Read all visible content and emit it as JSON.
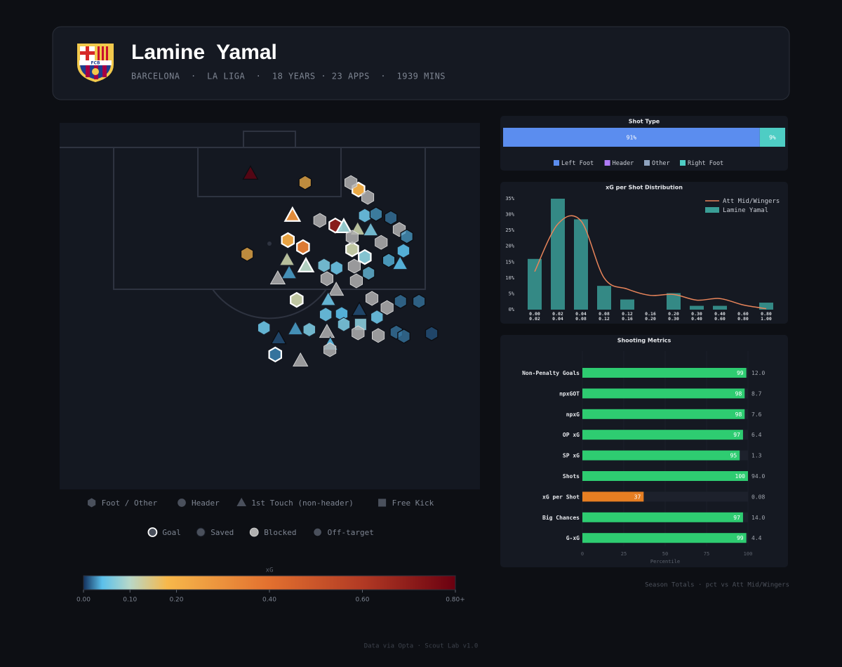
{
  "header": {
    "name": "Lamine  Yamal",
    "subtitle": "BARCELONA  ·  LA LIGA  ·  18 YEARS · 23 APPS  ·  1939 MINS",
    "crest": "FCB"
  },
  "chart_data": [
    {
      "type": "shotmap",
      "xlim": [
        0,
        100
      ],
      "ylim": [
        0,
        100
      ],
      "shots": [
        {
          "x": 45.4,
          "y": 13.9,
          "xg": 0.8,
          "shape": "triangle",
          "outcome": "off-target"
        },
        {
          "x": 58.4,
          "y": 16.3,
          "xg": 0.2,
          "shape": "hex",
          "outcome": "off-target"
        },
        {
          "x": 55.4,
          "y": 25.3,
          "xg": 0.3,
          "shape": "triangle",
          "outcome": "goal"
        },
        {
          "x": 54.3,
          "y": 32.0,
          "xg": 0.22,
          "shape": "hex",
          "outcome": "goal"
        },
        {
          "x": 57.9,
          "y": 33.9,
          "xg": 0.35,
          "shape": "hex",
          "outcome": "goal"
        },
        {
          "x": 44.6,
          "y": 35.8,
          "xg": 0.2,
          "shape": "hex",
          "outcome": "off-target"
        },
        {
          "x": 54.1,
          "y": 37.4,
          "xg": 0.12,
          "shape": "triangle",
          "outcome": "saved"
        },
        {
          "x": 58.6,
          "y": 39.1,
          "xg": 0.1,
          "shape": "triangle",
          "outcome": "goal"
        },
        {
          "x": 54.6,
          "y": 41.0,
          "xg": 0.03,
          "shape": "triangle",
          "outcome": "saved"
        },
        {
          "x": 51.9,
          "y": 42.5,
          "shape": "triangle",
          "outcome": "blocked"
        },
        {
          "x": 65.6,
          "y": 28.0,
          "xg": 0.7,
          "shape": "hex",
          "outcome": "goal"
        },
        {
          "x": 67.6,
          "y": 28.4,
          "xg": 0.08,
          "shape": "triangle",
          "outcome": "goal"
        },
        {
          "x": 61.9,
          "y": 26.6,
          "shape": "hex",
          "outcome": "blocked"
        },
        {
          "x": 71.1,
          "y": 18.2,
          "xg": 0.2,
          "shape": "hex",
          "outcome": "goal"
        },
        {
          "x": 69.3,
          "y": 16.3,
          "shape": "hex",
          "outcome": "blocked"
        },
        {
          "x": 73.3,
          "y": 20.3,
          "shape": "hex",
          "outcome": "blocked"
        },
        {
          "x": 72.6,
          "y": 25.3,
          "xg": 0.05,
          "shape": "hex",
          "outcome": "saved"
        },
        {
          "x": 75.3,
          "y": 24.9,
          "xg": 0.03,
          "shape": "hex",
          "outcome": "off-target"
        },
        {
          "x": 78.8,
          "y": 25.9,
          "xg": 0.02,
          "shape": "hex",
          "outcome": "off-target"
        },
        {
          "x": 70.9,
          "y": 29.1,
          "xg": 0.12,
          "shape": "triangle",
          "outcome": "saved"
        },
        {
          "x": 74.0,
          "y": 29.3,
          "xg": 0.06,
          "shape": "triangle",
          "outcome": "saved"
        },
        {
          "x": 80.8,
          "y": 29.1,
          "shape": "hex",
          "outcome": "blocked"
        },
        {
          "x": 82.6,
          "y": 31.0,
          "xg": 0.03,
          "shape": "hex",
          "outcome": "off-target"
        },
        {
          "x": 69.6,
          "y": 34.5,
          "xg": 0.12,
          "shape": "hex",
          "outcome": "goal"
        },
        {
          "x": 72.6,
          "y": 36.6,
          "xg": 0.07,
          "shape": "hex",
          "outcome": "goal"
        },
        {
          "x": 76.5,
          "y": 32.6,
          "shape": "hex",
          "outcome": "blocked"
        },
        {
          "x": 81.8,
          "y": 34.9,
          "xg": 0.04,
          "shape": "hex",
          "outcome": "saved"
        },
        {
          "x": 78.3,
          "y": 37.5,
          "xg": 0.04,
          "shape": "hex",
          "outcome": "off-target"
        },
        {
          "x": 81.0,
          "y": 38.5,
          "xg": 0.04,
          "shape": "triangle",
          "outcome": "saved"
        },
        {
          "x": 62.9,
          "y": 38.9,
          "xg": 0.06,
          "shape": "hex",
          "outcome": "saved"
        },
        {
          "x": 65.9,
          "y": 39.6,
          "xg": 0.05,
          "shape": "hex",
          "outcome": "saved"
        },
        {
          "x": 70.1,
          "y": 39.1,
          "shape": "hex",
          "outcome": "blocked"
        },
        {
          "x": 73.5,
          "y": 41.0,
          "xg": 0.05,
          "shape": "hex",
          "outcome": "off-target"
        },
        {
          "x": 70.6,
          "y": 43.1,
          "shape": "hex",
          "outcome": "blocked"
        },
        {
          "x": 63.6,
          "y": 42.5,
          "shape": "hex",
          "outcome": "blocked"
        },
        {
          "x": 56.4,
          "y": 48.3,
          "xg": 0.12,
          "shape": "hex",
          "outcome": "goal"
        },
        {
          "x": 65.8,
          "y": 45.6,
          "shape": "triangle",
          "outcome": "blocked"
        },
        {
          "x": 63.9,
          "y": 48.3,
          "xg": 0.05,
          "shape": "triangle",
          "outcome": "saved"
        },
        {
          "x": 74.3,
          "y": 47.9,
          "shape": "hex",
          "outcome": "blocked"
        },
        {
          "x": 81.1,
          "y": 48.7,
          "xg": 0.02,
          "shape": "hex",
          "outcome": "off-target"
        },
        {
          "x": 85.5,
          "y": 48.7,
          "xg": 0.02,
          "shape": "hex",
          "outcome": "off-target"
        },
        {
          "x": 63.3,
          "y": 52.3,
          "xg": 0.05,
          "shape": "hex",
          "outcome": "saved"
        },
        {
          "x": 67.1,
          "y": 52.1,
          "xg": 0.04,
          "shape": "hex",
          "outcome": "saved"
        },
        {
          "x": 71.3,
          "y": 51.1,
          "xg": 0.01,
          "shape": "triangle",
          "outcome": "off-target"
        },
        {
          "x": 77.9,
          "y": 50.4,
          "shape": "hex",
          "outcome": "blocked"
        },
        {
          "x": 75.5,
          "y": 53.0,
          "xg": 0.05,
          "shape": "hex",
          "outcome": "saved"
        },
        {
          "x": 71.6,
          "y": 55.0,
          "xg": 0.07,
          "shape": "square",
          "outcome": "saved"
        },
        {
          "x": 67.6,
          "y": 55.0,
          "xg": 0.06,
          "shape": "hex",
          "outcome": "saved"
        },
        {
          "x": 59.4,
          "y": 56.4,
          "xg": 0.06,
          "shape": "hex",
          "outcome": "saved"
        },
        {
          "x": 48.6,
          "y": 55.9,
          "xg": 0.05,
          "shape": "hex",
          "outcome": "saved"
        },
        {
          "x": 56.1,
          "y": 56.3,
          "xg": 0.03,
          "shape": "triangle",
          "outcome": "saved"
        },
        {
          "x": 63.6,
          "y": 57.1,
          "shape": "triangle",
          "outcome": "blocked"
        },
        {
          "x": 71.0,
          "y": 57.3,
          "shape": "hex",
          "outcome": "blocked"
        },
        {
          "x": 75.8,
          "y": 58.0,
          "shape": "hex",
          "outcome": "blocked"
        },
        {
          "x": 80.1,
          "y": 57.1,
          "xg": 0.02,
          "shape": "hex",
          "outcome": "off-target"
        },
        {
          "x": 81.9,
          "y": 58.2,
          "xg": 0.02,
          "shape": "hex",
          "outcome": "off-target"
        },
        {
          "x": 88.5,
          "y": 57.5,
          "xg": 0.01,
          "shape": "hex",
          "outcome": "off-target"
        },
        {
          "x": 52.1,
          "y": 58.8,
          "xg": 0.01,
          "shape": "triangle",
          "outcome": "off-target"
        },
        {
          "x": 64.4,
          "y": 60.5,
          "xg": 0.04,
          "shape": "triangle",
          "outcome": "saved"
        },
        {
          "x": 51.3,
          "y": 63.2,
          "xg": 0.02,
          "shape": "hex",
          "outcome": "goal"
        },
        {
          "x": 64.3,
          "y": 61.9,
          "shape": "hex",
          "outcome": "blocked"
        },
        {
          "x": 57.3,
          "y": 64.9,
          "shape": "triangle",
          "outcome": "blocked"
        },
        {
          "x": 69.6,
          "y": 31.2,
          "shape": "hex",
          "outcome": "blocked"
        }
      ],
      "shape_legend": [
        {
          "name": "Foot / Other",
          "shape": "hex"
        },
        {
          "name": "Header",
          "shape": "circle"
        },
        {
          "name": "1st Touch (non-header)",
          "shape": "triangle"
        },
        {
          "name": "Free Kick",
          "shape": "square"
        }
      ],
      "outcome_legend": [
        {
          "name": "Goal",
          "outcome": "goal"
        },
        {
          "name": "Saved",
          "outcome": "saved"
        },
        {
          "name": "Blocked",
          "outcome": "blocked"
        },
        {
          "name": "Off-target",
          "outcome": "off-target"
        }
      ],
      "colorbar": {
        "label": "xG",
        "xlim": [
          0,
          0.8
        ],
        "ticks": [
          {
            "value": 0,
            "label": "0.00"
          },
          {
            "value": 0.1,
            "label": "0.10"
          },
          {
            "value": 0.2,
            "label": "0.20"
          },
          {
            "value": 0.4,
            "label": "0.40"
          },
          {
            "value": 0.6,
            "label": "0.60"
          },
          {
            "value": 0.8,
            "label": "0.80+"
          }
        ],
        "colorscale": [
          [
            0,
            "#12305c"
          ],
          [
            0.04,
            "#5bc0eb"
          ],
          [
            0.1,
            "#b8d8c8"
          ],
          [
            0.18,
            "#f7b84b"
          ],
          [
            0.4,
            "#e2702f"
          ],
          [
            0.6,
            "#b23a24"
          ],
          [
            0.8,
            "#6a0010"
          ]
        ]
      }
    },
    {
      "type": "stacked_bar",
      "title": "Shot Type",
      "categories": [
        "Left Foot",
        "Header",
        "Other",
        "Right Foot"
      ],
      "values": [
        91,
        0,
        0,
        9
      ],
      "value_labels": [
        "91%",
        null,
        null,
        "9%"
      ],
      "colors": [
        "#5b8def",
        "#b07cf7",
        "#8fa3bf",
        "#4ecdc4"
      ],
      "xlim": [
        0,
        100
      ]
    },
    {
      "type": "histogram",
      "title": "xG per Shot Distribution",
      "bin_labels": [
        [
          "0.00",
          "0.02"
        ],
        [
          "0.02",
          "0.04"
        ],
        [
          "0.04",
          "0.08"
        ],
        [
          "0.08",
          "0.12"
        ],
        [
          "0.12",
          "0.16"
        ],
        [
          "0.16",
          "0.20"
        ],
        [
          "0.20",
          "0.30"
        ],
        [
          "0.30",
          "0.40"
        ],
        [
          "0.40",
          "0.60"
        ],
        [
          "0.60",
          "0.80"
        ],
        [
          "0.80",
          "1.00"
        ]
      ],
      "bar_name": "Lamine Yamal",
      "color": "#3a9e96",
      "values": [
        16,
        35,
        28.5,
        7.5,
        3.2,
        0,
        5.2,
        1.2,
        1.2,
        0,
        2.2
      ],
      "line": {
        "name": "Att Mid/Wingers",
        "color": "#e8845a",
        "values": [
          12,
          27,
          28,
          10,
          6.5,
          4.5,
          4.8,
          3,
          3.5,
          1.5,
          0.3
        ]
      },
      "ylim": [
        0,
        35
      ],
      "yticks": [
        {
          "value": 0,
          "label": "0%"
        },
        {
          "value": 5,
          "label": "5%"
        },
        {
          "value": 10,
          "label": "10%"
        },
        {
          "value": 15,
          "label": "15%"
        },
        {
          "value": 20,
          "label": "20%"
        },
        {
          "value": 25,
          "label": "25%"
        },
        {
          "value": 30,
          "label": "30%"
        },
        {
          "value": 35,
          "label": "35%"
        }
      ],
      "grid": false
    },
    {
      "type": "hbar",
      "title": "Shooting Metrics",
      "categories": [
        "Non-Penalty Goals",
        "npxGOT",
        "npxG",
        "OP xG",
        "SP xG",
        "Shots",
        "xG per Shot",
        "Big Chances",
        "G-xG"
      ],
      "values": [
        99,
        98,
        98,
        97,
        95,
        100,
        37,
        97,
        99
      ],
      "colors": [
        "#2ecc71",
        "#2ecc71",
        "#2ecc71",
        "#2ecc71",
        "#2ecc71",
        "#2ecc71",
        "#e67e22",
        "#2ecc71",
        "#2ecc71"
      ],
      "raw": [
        "12.0",
        "8.7",
        "7.6",
        "6.4",
        "1.3",
        "94.0",
        "0.08",
        "14.0",
        "4.4"
      ],
      "xlim": [
        0,
        100
      ],
      "xticks": [
        0,
        25,
        50,
        75,
        100
      ],
      "xlabel": "Percentile",
      "grid": true
    }
  ],
  "footer": {
    "note": "Season Totals · pct vs Att Mid/Wingers",
    "credit": "Data via Opta · Scout Lab v1.0"
  }
}
